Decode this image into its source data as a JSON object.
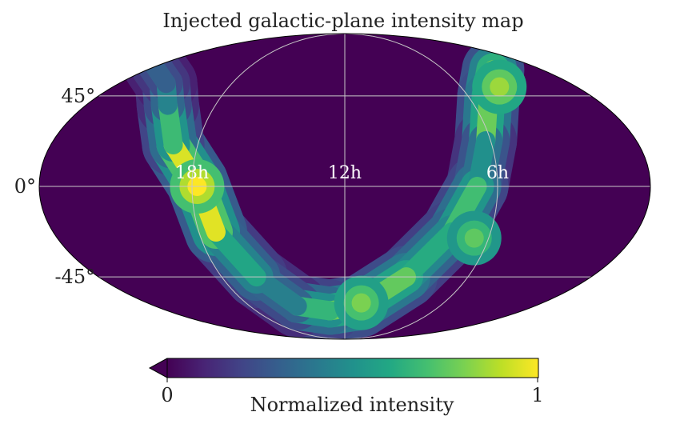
{
  "chart_data": {
    "type": "heatmap",
    "projection": "mollweide",
    "title": "Injected galactic-plane intensity map",
    "colormap": "viridis",
    "colors": {
      "viridis": [
        "#440154",
        "#482475",
        "#414487",
        "#355f8d",
        "#2a788e",
        "#21918c",
        "#22a884",
        "#44bf70",
        "#7ad151",
        "#bddf26",
        "#fde725"
      ],
      "grid": "#c8c8c8",
      "frame": "#000000"
    },
    "grid": true,
    "dec_ticks": [
      {
        "value": 45,
        "label": "45°"
      },
      {
        "value": 0,
        "label": "0°"
      },
      {
        "value": -45,
        "label": "-45°"
      }
    ],
    "ra_ticks": [
      {
        "value": 18,
        "label": "18h"
      },
      {
        "value": 12,
        "label": "12h"
      },
      {
        "value": 6,
        "label": "6h"
      }
    ],
    "colorbar": {
      "label": "Normalized intensity",
      "min": 0,
      "max": 1,
      "tick_labels": [
        "0",
        "1"
      ],
      "extend": "min"
    },
    "galactic_plane_path": [
      {
        "ra_h": 17.8,
        "dec": 2
      },
      {
        "ra_h": 19.0,
        "dec": 20
      },
      {
        "ra_h": 20.2,
        "dec": 40
      },
      {
        "ra_h": 21.5,
        "dec": 52
      },
      {
        "ra_h": 24.0,
        "dec": 62
      },
      {
        "ra_h": 3.0,
        "dec": 60
      },
      {
        "ra_h": 5.0,
        "dec": 45
      },
      {
        "ra_h": 6.2,
        "dec": 22
      },
      {
        "ra_h": 6.8,
        "dec": 0
      },
      {
        "ra_h": 7.6,
        "dec": -22
      },
      {
        "ra_h": 9.0,
        "dec": -45
      },
      {
        "ra_h": 11.0,
        "dec": -62
      },
      {
        "ra_h": 13.0,
        "dec": -65
      },
      {
        "ra_h": 15.0,
        "dec": -62
      },
      {
        "ra_h": 16.3,
        "dec": -45
      },
      {
        "ra_h": 17.3,
        "dec": -22
      },
      {
        "ra_h": 17.8,
        "dec": 2
      }
    ],
    "intensity_peaks": [
      {
        "ra_h": 17.8,
        "dec": 0,
        "value": 1.0
      },
      {
        "ra_h": 4.0,
        "dec": 50,
        "value": 0.85
      },
      {
        "ra_h": 6.6,
        "dec": -25,
        "value": 0.75
      },
      {
        "ra_h": 11.0,
        "dec": -60,
        "value": 0.8
      }
    ],
    "background_value": 0
  }
}
